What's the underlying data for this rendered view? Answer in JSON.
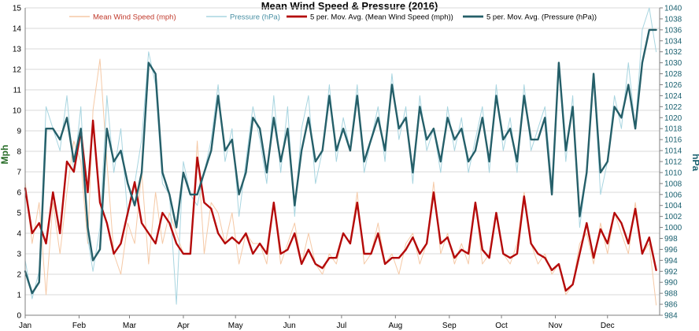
{
  "chart_data": {
    "type": "line",
    "title": "Mean Wind Speed & Pressure (2016)",
    "y_left_label": "Mph",
    "y_right_label": "hPa",
    "x_tick_labels": [
      "Jan",
      "Feb",
      "Mar",
      "Apr",
      "May",
      "Jun",
      "Jul",
      "Aug",
      "Sep",
      "Oct",
      "Nov",
      "Dec"
    ],
    "y_left_ticks": [
      0,
      1,
      2,
      3,
      4,
      5,
      6,
      7,
      8,
      9,
      10,
      11,
      12,
      13,
      14,
      15
    ],
    "y_right_ticks": [
      984,
      986,
      988,
      990,
      992,
      994,
      996,
      998,
      1000,
      1002,
      1004,
      1006,
      1008,
      1010,
      1012,
      1014,
      1016,
      1018,
      1020,
      1022,
      1024,
      1026,
      1028,
      1030,
      1032,
      1034,
      1036,
      1038,
      1040
    ],
    "y_left_range": [
      0,
      15
    ],
    "y_right_range": [
      984,
      1040
    ],
    "x_range_days": [
      1,
      366
    ],
    "grid": "horizontal",
    "legend_position": "top",
    "colors": {
      "wind_raw": "#f5c9a6",
      "pressure_raw": "#a8d5e0",
      "wind_avg": "#b40a0a",
      "pressure_avg": "#255f69",
      "right_axis_text": "#1b6170",
      "left_axis_label": "#2a6e2a"
    },
    "series": [
      {
        "name": "Mean Wind Speed (mph)",
        "axis": "left",
        "style": "thin",
        "x": [
          1,
          5,
          9,
          13,
          17,
          21,
          25,
          29,
          33,
          37,
          40,
          44,
          48,
          52,
          56,
          60,
          64,
          68,
          72,
          76,
          80,
          84,
          88,
          92,
          96,
          100,
          104,
          108,
          112,
          116,
          120,
          124,
          128,
          132,
          136,
          140,
          144,
          148,
          152,
          156,
          160,
          164,
          168,
          172,
          176,
          180,
          184,
          188,
          192,
          196,
          200,
          204,
          208,
          212,
          216,
          220,
          224,
          228,
          232,
          236,
          240,
          244,
          248,
          252,
          256,
          260,
          264,
          268,
          272,
          276,
          280,
          284,
          288,
          292,
          296,
          300,
          304,
          308,
          312,
          316,
          320,
          324,
          328,
          332,
          336,
          340,
          344,
          348,
          352,
          356,
          360,
          364
        ],
        "y": [
          6.5,
          3.5,
          5.5,
          1,
          5.5,
          3,
          6,
          8.5,
          7.5,
          3.5,
          10,
          12.5,
          7.5,
          3,
          2,
          4.5,
          3.5,
          7,
          2.5,
          6,
          3.5,
          5,
          4,
          3,
          3,
          8.5,
          3,
          5.5,
          5,
          3.5,
          5,
          2.5,
          4,
          3.5,
          3.5,
          2.5,
          5.5,
          2.5,
          3.5,
          4.5,
          2.5,
          4,
          2.5,
          2,
          3,
          2.5,
          4,
          3.5,
          6,
          2.5,
          3,
          4.5,
          2.5,
          3,
          2,
          3.5,
          4,
          2.5,
          3.5,
          6.5,
          3,
          4,
          2.5,
          3.5,
          2.5,
          5.5,
          2.5,
          3,
          5,
          3,
          2.5,
          3.5,
          6,
          3.5,
          2.5,
          3,
          2,
          2.5,
          1,
          1.5,
          3.5,
          4,
          2.5,
          4.5,
          3,
          5,
          4,
          3,
          5.5,
          3,
          3.5,
          0.5
        ]
      },
      {
        "name": "Pressure (hPa)",
        "axis": "right",
        "style": "thin",
        "x": [
          1,
          5,
          9,
          13,
          17,
          21,
          25,
          29,
          33,
          37,
          40,
          44,
          48,
          52,
          56,
          60,
          64,
          68,
          72,
          76,
          80,
          84,
          88,
          92,
          96,
          100,
          104,
          108,
          112,
          116,
          120,
          124,
          128,
          132,
          136,
          140,
          144,
          148,
          152,
          156,
          160,
          164,
          168,
          172,
          176,
          180,
          184,
          188,
          192,
          196,
          200,
          204,
          208,
          212,
          216,
          220,
          224,
          228,
          232,
          236,
          240,
          244,
          248,
          252,
          256,
          260,
          264,
          268,
          272,
          276,
          280,
          284,
          288,
          292,
          296,
          300,
          304,
          308,
          312,
          316,
          320,
          324,
          328,
          332,
          336,
          340,
          344,
          348,
          352,
          356,
          360,
          364
        ],
        "y": [
          994,
          987,
          992,
          1022,
          1018,
          1014,
          1024,
          1010,
          1022,
          998,
          992,
          1000,
          1024,
          1010,
          1018,
          1002,
          1008,
          1016,
          1032,
          1026,
          1008,
          1006,
          986,
          1012,
          1006,
          1004,
          1010,
          1016,
          1026,
          1012,
          1018,
          1002,
          1012,
          1022,
          1016,
          1008,
          1024,
          1010,
          1022,
          1002,
          1018,
          1024,
          1008,
          1014,
          1026,
          1012,
          1020,
          1014,
          1026,
          1010,
          1016,
          1022,
          1012,
          1028,
          1016,
          1022,
          1008,
          1024,
          1014,
          1018,
          1010,
          1022,
          1014,
          1020,
          1010,
          1016,
          1022,
          1010,
          1026,
          1014,
          1020,
          1010,
          1026,
          1014,
          1018,
          1022,
          1008,
          1030,
          1012,
          1024,
          1000,
          1010,
          1028,
          1006,
          1012,
          1024,
          1018,
          1030,
          1018,
          1036,
          1040,
          1032
        ]
      },
      {
        "name": "5 per. Mov. Avg. (Mean Wind Speed (mph))",
        "axis": "left",
        "style": "thick",
        "x": [
          1,
          5,
          9,
          13,
          17,
          21,
          25,
          29,
          33,
          37,
          40,
          44,
          48,
          52,
          56,
          60,
          64,
          68,
          72,
          76,
          80,
          84,
          88,
          92,
          96,
          100,
          104,
          108,
          112,
          116,
          120,
          124,
          128,
          132,
          136,
          140,
          144,
          148,
          152,
          156,
          160,
          164,
          168,
          172,
          176,
          180,
          184,
          188,
          192,
          196,
          200,
          204,
          208,
          212,
          216,
          220,
          224,
          228,
          232,
          236,
          240,
          244,
          248,
          252,
          256,
          260,
          264,
          268,
          272,
          276,
          280,
          284,
          288,
          292,
          296,
          300,
          304,
          308,
          312,
          316,
          320,
          324,
          328,
          332,
          336,
          340,
          344,
          348,
          352,
          356,
          360,
          364
        ],
        "y": [
          6.2,
          4,
          4.5,
          3.5,
          6,
          4,
          7.5,
          7,
          9,
          6,
          9.5,
          5.5,
          4.5,
          3,
          3.5,
          5,
          6.5,
          4.5,
          4,
          3.5,
          5,
          4.5,
          3.5,
          3,
          3,
          7.7,
          5.5,
          5.2,
          4,
          3.5,
          3.8,
          3.5,
          4,
          3,
          3.5,
          3,
          5.5,
          3,
          3.2,
          4,
          2.5,
          3.2,
          2.5,
          2.3,
          2.8,
          2.8,
          4,
          3.5,
          5.5,
          3,
          3,
          4,
          2.5,
          2.8,
          2.8,
          3.2,
          3.8,
          3,
          3.5,
          6,
          3.5,
          3.8,
          2.8,
          3.2,
          3,
          5.5,
          3.2,
          2.8,
          5,
          3,
          2.8,
          3,
          5.8,
          3.5,
          3,
          2.8,
          2.2,
          2.5,
          1.2,
          1.5,
          3,
          4.5,
          2.8,
          4.2,
          3.5,
          5,
          4.5,
          3.5,
          5.2,
          3,
          3.8,
          2.2
        ]
      },
      {
        "name": "5 per. Mov. Avg. (Pressure (hPa))",
        "axis": "right",
        "style": "thick",
        "x": [
          1,
          5,
          9,
          13,
          17,
          21,
          25,
          29,
          33,
          37,
          40,
          44,
          48,
          52,
          56,
          60,
          64,
          68,
          72,
          76,
          80,
          84,
          88,
          92,
          96,
          100,
          104,
          108,
          112,
          116,
          120,
          124,
          128,
          132,
          136,
          140,
          144,
          148,
          152,
          156,
          160,
          164,
          168,
          172,
          176,
          180,
          184,
          188,
          192,
          196,
          200,
          204,
          208,
          212,
          216,
          220,
          224,
          228,
          232,
          236,
          240,
          244,
          248,
          252,
          256,
          260,
          264,
          268,
          272,
          276,
          280,
          284,
          288,
          292,
          296,
          300,
          304,
          308,
          312,
          316,
          320,
          324,
          328,
          332,
          336,
          340,
          344,
          348,
          352,
          356,
          360,
          364
        ],
        "y": [
          992,
          988,
          990,
          1018,
          1018,
          1016,
          1020,
          1012,
          1018,
          1000,
          994,
          996,
          1018,
          1012,
          1014,
          1008,
          1004,
          1010,
          1030,
          1028,
          1010,
          1006,
          1000,
          1010,
          1006,
          1006,
          1010,
          1014,
          1024,
          1014,
          1016,
          1006,
          1010,
          1020,
          1018,
          1010,
          1020,
          1012,
          1018,
          1004,
          1014,
          1020,
          1012,
          1014,
          1024,
          1014,
          1018,
          1014,
          1024,
          1012,
          1016,
          1020,
          1014,
          1026,
          1018,
          1020,
          1010,
          1022,
          1016,
          1018,
          1012,
          1020,
          1016,
          1018,
          1012,
          1014,
          1020,
          1012,
          1024,
          1016,
          1018,
          1012,
          1024,
          1016,
          1016,
          1020,
          1006,
          1030,
          1014,
          1022,
          1002,
          1010,
          1028,
          1010,
          1012,
          1022,
          1020,
          1026,
          1018,
          1030,
          1036,
          1036
        ]
      }
    ]
  }
}
